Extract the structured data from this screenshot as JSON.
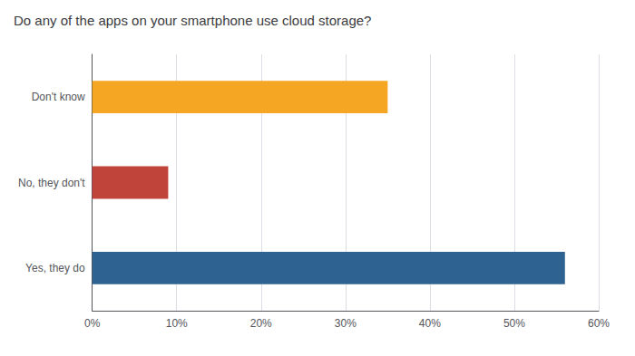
{
  "chart_data": {
    "type": "bar",
    "title": "Do any of the apps on your smartphone use cloud storage?",
    "orientation": "horizontal",
    "categories": [
      "Yes, they do",
      "No, they don't",
      "Don't know"
    ],
    "values": [
      56,
      9,
      35
    ],
    "colors": [
      "#2e6391",
      "#c0443a",
      "#f5a623"
    ],
    "xlim": [
      0,
      60
    ],
    "xticks": [
      {
        "value": 0,
        "label": "0%"
      },
      {
        "value": 10,
        "label": "10%"
      },
      {
        "value": 20,
        "label": "20%"
      },
      {
        "value": 30,
        "label": "30%"
      },
      {
        "value": 40,
        "label": "40%"
      },
      {
        "value": 50,
        "label": "50%"
      },
      {
        "value": 60,
        "label": "60%"
      }
    ],
    "grid": true
  }
}
